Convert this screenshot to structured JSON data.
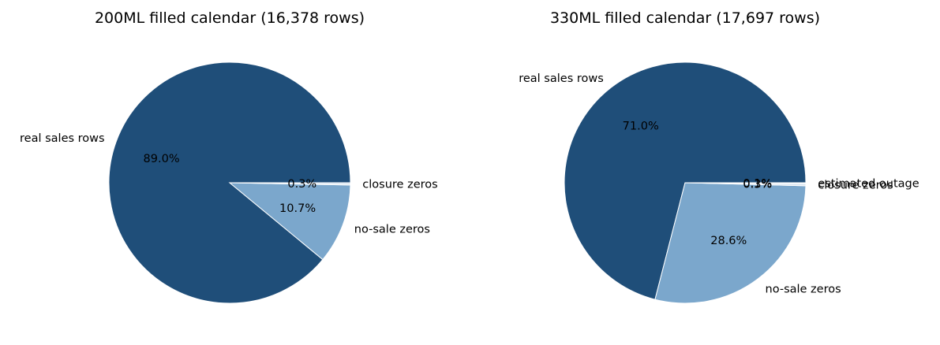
{
  "chart_data": [
    {
      "type": "pie",
      "title": "200ML filled calendar (16,378 rows)",
      "slices": [
        {
          "label": "real sales rows",
          "value": 89.0,
          "pct_label": "89.0%",
          "color": "#1f4e79"
        },
        {
          "label": "no-sale zeros",
          "value": 10.7,
          "pct_label": "10.7%",
          "color": "#7ba7cc"
        },
        {
          "label": "closure zeros",
          "value": 0.3,
          "pct_label": "0.3%",
          "color": "#dce8f3"
        }
      ]
    },
    {
      "type": "pie",
      "title": "330ML filled calendar (17,697 rows)",
      "slices": [
        {
          "label": "real sales rows",
          "value": 71.0,
          "pct_label": "71.0%",
          "color": "#1f4e79"
        },
        {
          "label": "no-sale zeros",
          "value": 28.6,
          "pct_label": "28.6%",
          "color": "#7ba7cc"
        },
        {
          "label": "closure zeros",
          "value": 0.3,
          "pct_label": "0.3%",
          "color": "#dce8f3"
        },
        {
          "label": "estimated outage",
          "value": 0.1,
          "pct_label": "0.1%",
          "color": "#c98a5a"
        }
      ]
    }
  ]
}
